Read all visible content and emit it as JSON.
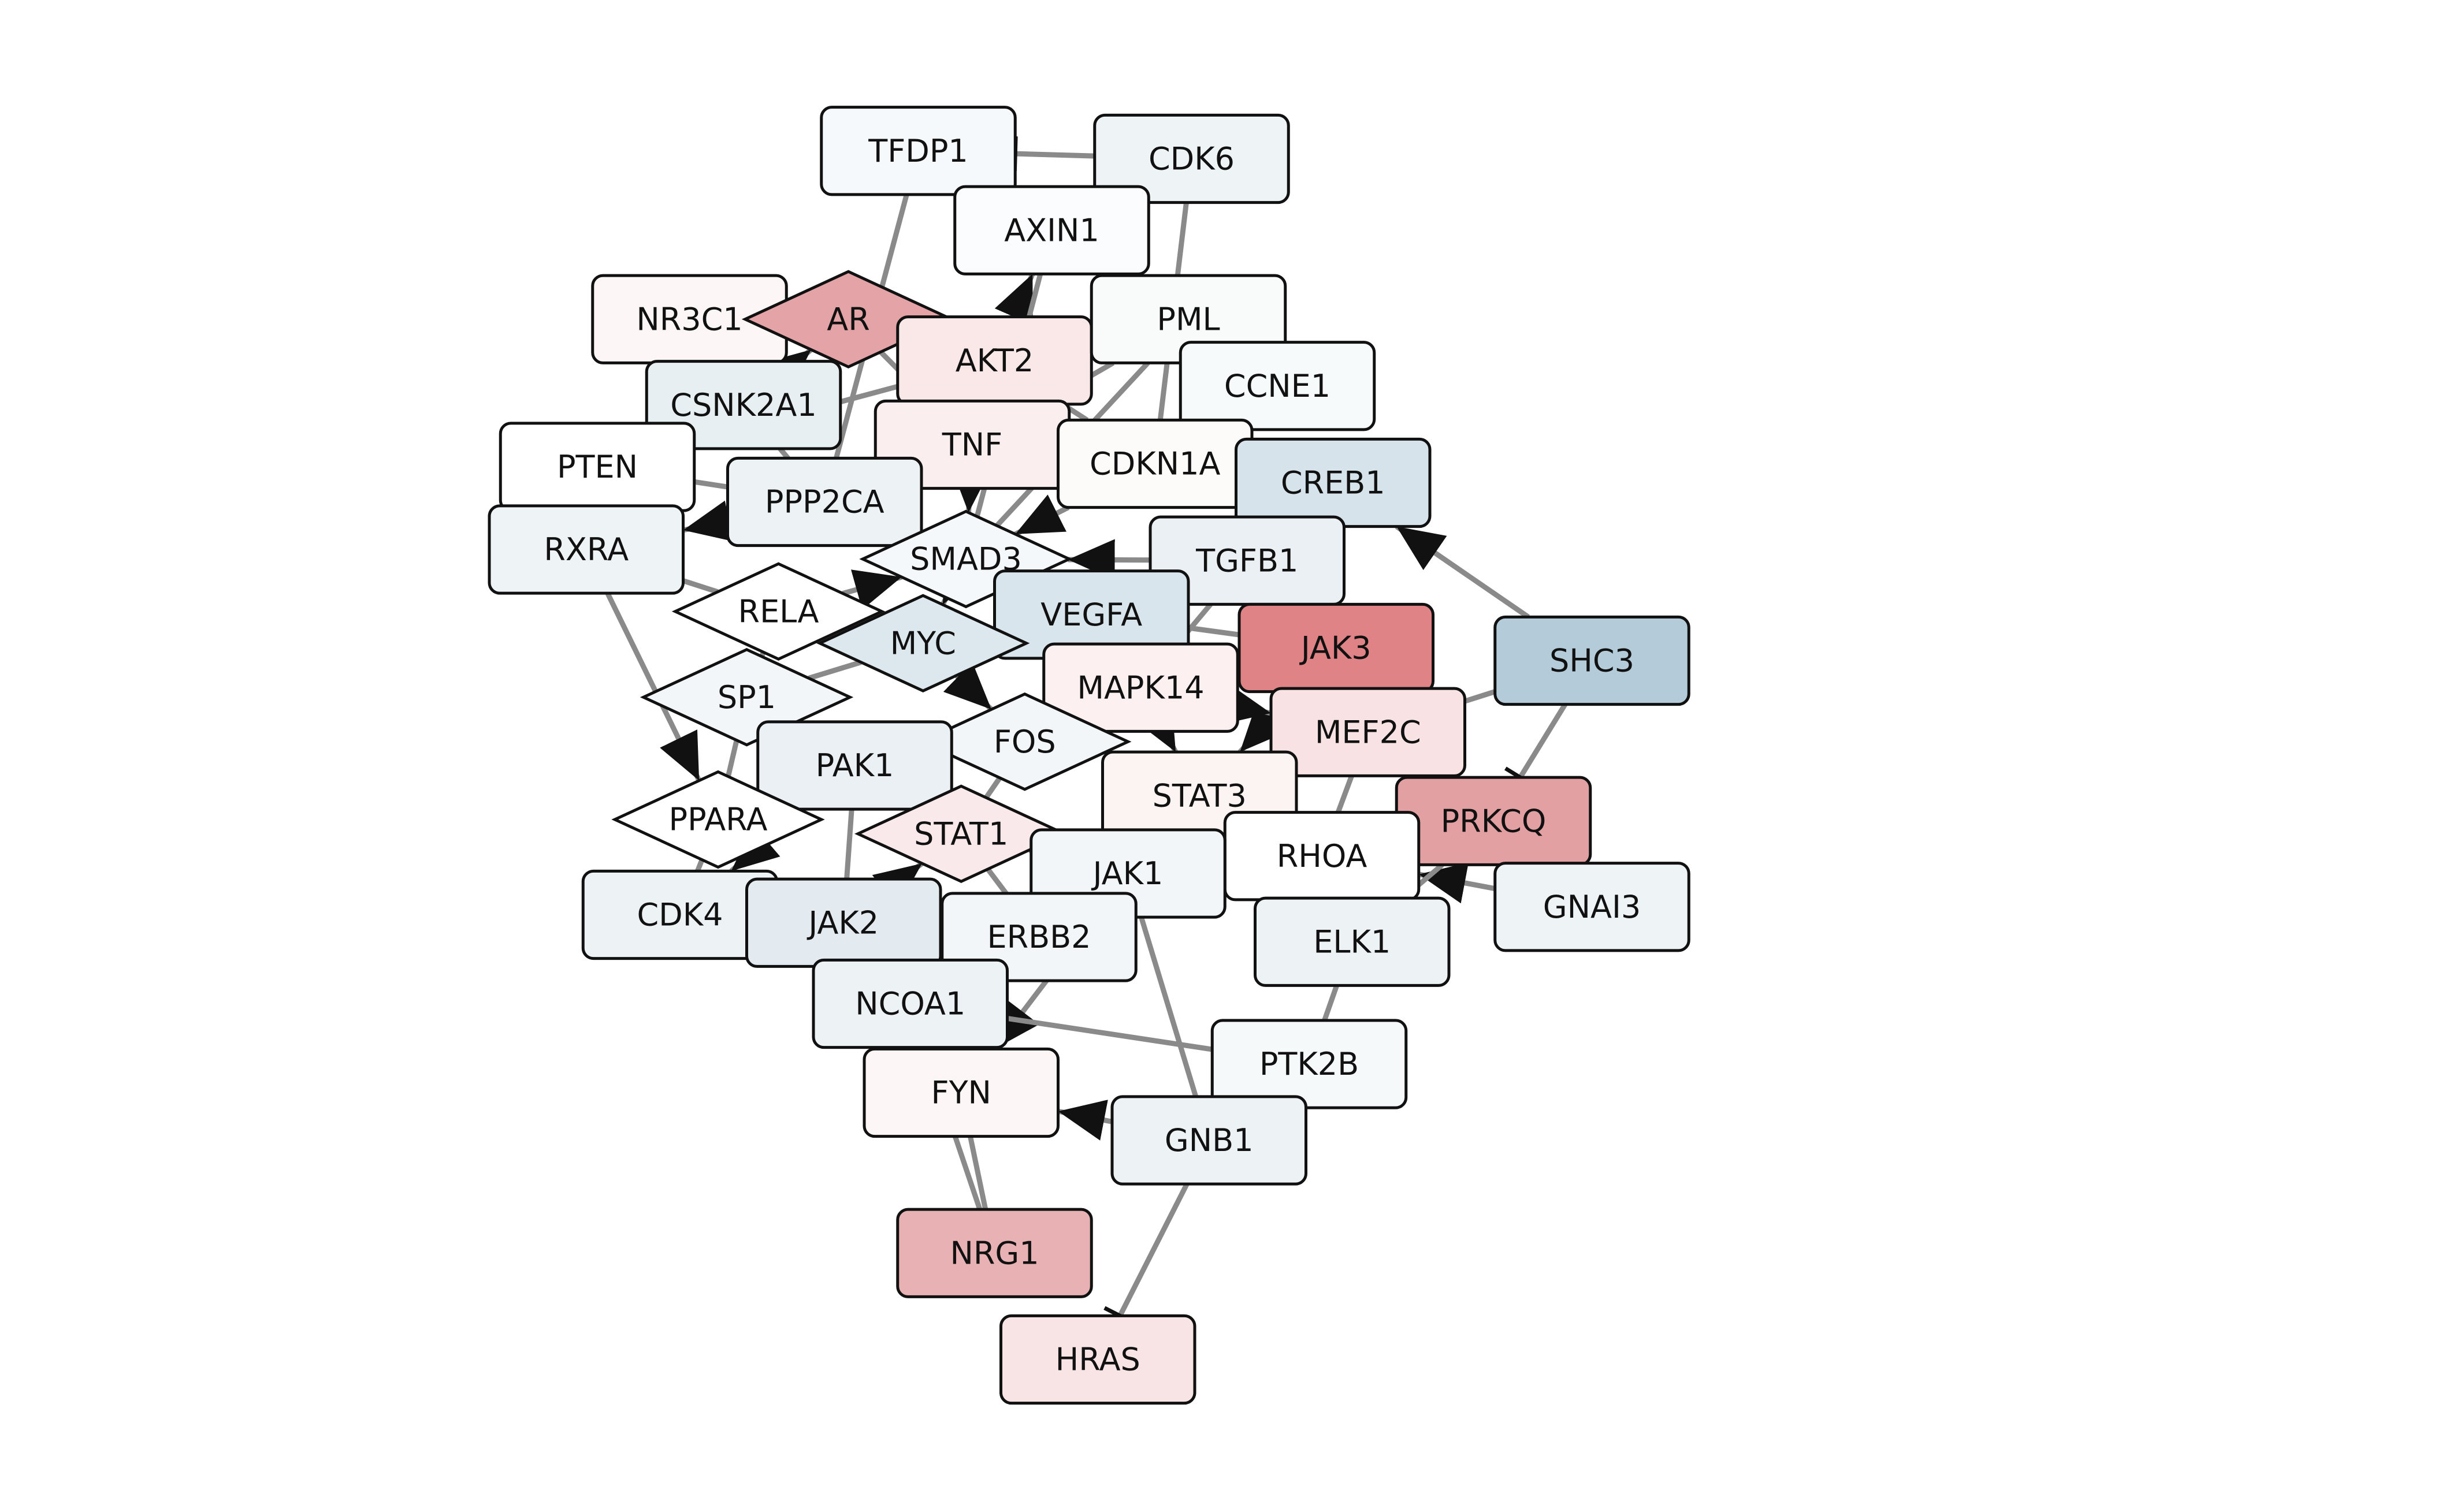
{
  "network": {
    "nodes": [
      {
        "id": "TFDP1",
        "shape": "rect",
        "fill": "#f6f9fb"
      },
      {
        "id": "CDK6",
        "shape": "rect",
        "fill": "#eef3f6"
      },
      {
        "id": "AXIN1",
        "shape": "rect",
        "fill": "#fbfcfd"
      },
      {
        "id": "NR3C1",
        "shape": "rect",
        "fill": "#fdf6f6"
      },
      {
        "id": "AR",
        "shape": "diamond",
        "fill": "#e4a3a6"
      },
      {
        "id": "AKT2",
        "shape": "rect",
        "fill": "#fae8e9"
      },
      {
        "id": "PML",
        "shape": "rect",
        "fill": "#f9fbfb"
      },
      {
        "id": "CSNK2A1",
        "shape": "rect",
        "fill": "#e8eff3"
      },
      {
        "id": "CCNE1",
        "shape": "rect",
        "fill": "#f7fafb"
      },
      {
        "id": "TNF",
        "shape": "rect",
        "fill": "#fbeeee"
      },
      {
        "id": "PTEN",
        "shape": "rect",
        "fill": "#ffffff"
      },
      {
        "id": "CDKN1A",
        "shape": "rect",
        "fill": "#fdfafa"
      },
      {
        "id": "PPP2CA",
        "shape": "rect",
        "fill": "#edf2f5"
      },
      {
        "id": "CREB1",
        "shape": "rect",
        "fill": "#d6e3ea"
      },
      {
        "id": "RXRA",
        "shape": "rect",
        "fill": "#eef3f6"
      },
      {
        "id": "SMAD3",
        "shape": "diamond",
        "fill": "#f5f8fa"
      },
      {
        "id": "TGFB1",
        "shape": "rect",
        "fill": "#eaf0f4"
      },
      {
        "id": "RELA",
        "shape": "diamond",
        "fill": "#ffffff"
      },
      {
        "id": "VEGFA",
        "shape": "rect",
        "fill": "#d8e5ec"
      },
      {
        "id": "MYC",
        "shape": "diamond",
        "fill": "#dde8ee"
      },
      {
        "id": "JAK3",
        "shape": "rect",
        "fill": "#df8387"
      },
      {
        "id": "SHC3",
        "shape": "rect",
        "fill": "#b4ccda"
      },
      {
        "id": "SP1",
        "shape": "diamond",
        "fill": "#f2f6f8"
      },
      {
        "id": "MAPK14",
        "shape": "rect",
        "fill": "#fcf0f1"
      },
      {
        "id": "FOS",
        "shape": "diamond",
        "fill": "#f2f6f8"
      },
      {
        "id": "MEF2C",
        "shape": "rect",
        "fill": "#f8e2e3"
      },
      {
        "id": "PAK1",
        "shape": "rect",
        "fill": "#eaf0f4"
      },
      {
        "id": "STAT3",
        "shape": "rect",
        "fill": "#fcf3f3"
      },
      {
        "id": "PRKCQ",
        "shape": "rect",
        "fill": "#e3a0a3"
      },
      {
        "id": "PPARA",
        "shape": "diamond",
        "fill": "#ffffff"
      },
      {
        "id": "STAT1",
        "shape": "diamond",
        "fill": "#fae9ea"
      },
      {
        "id": "RHOA",
        "shape": "rect",
        "fill": "#ffffff"
      },
      {
        "id": "JAK1",
        "shape": "rect",
        "fill": "#f2f6f8"
      },
      {
        "id": "GNAI3",
        "shape": "rect",
        "fill": "#eef3f6"
      },
      {
        "id": "CDK4",
        "shape": "rect",
        "fill": "#edf2f5"
      },
      {
        "id": "JAK2",
        "shape": "rect",
        "fill": "#e3ebf0"
      },
      {
        "id": "ERBB2",
        "shape": "rect",
        "fill": "#f2f6f8"
      },
      {
        "id": "ELK1",
        "shape": "rect",
        "fill": "#edf2f5"
      },
      {
        "id": "NCOA1",
        "shape": "rect",
        "fill": "#edf2f5"
      },
      {
        "id": "PTK2B",
        "shape": "rect",
        "fill": "#f6f9fa"
      },
      {
        "id": "FYN",
        "shape": "rect",
        "fill": "#fdf6f6"
      },
      {
        "id": "GNB1",
        "shape": "rect",
        "fill": "#edf2f5"
      },
      {
        "id": "NRG1",
        "shape": "rect",
        "fill": "#e8b2b4"
      },
      {
        "id": "HRAS",
        "shape": "rect",
        "fill": "#f8e4e5"
      }
    ],
    "edges": [
      {
        "source": "CDK6",
        "target": "TFDP1",
        "type": "inhibit"
      },
      {
        "source": "AXIN1",
        "target": "TFDP1",
        "type": "activate"
      },
      {
        "source": "AKT2",
        "target": "AXIN1",
        "type": "activate"
      },
      {
        "source": "PML",
        "target": "AXIN1",
        "type": "plain"
      },
      {
        "source": "CDK6",
        "target": "AXIN1",
        "type": "activate"
      },
      {
        "source": "CDK6",
        "target": "CDKN1A",
        "type": "plain"
      },
      {
        "source": "NR3C1",
        "target": "AR",
        "type": "plain"
      },
      {
        "source": "AR",
        "target": "AKT2",
        "type": "activate"
      },
      {
        "source": "CSNK2A1",
        "target": "AR",
        "type": "activate"
      },
      {
        "source": "AKT2",
        "target": "TNF",
        "type": "plain"
      },
      {
        "source": "AKT2",
        "target": "CDKN1A",
        "type": "plain"
      },
      {
        "source": "PML",
        "target": "TNF",
        "type": "plain"
      },
      {
        "source": "CCNE1",
        "target": "CDKN1A",
        "type": "plain"
      },
      {
        "source": "TNF",
        "target": "PPP2CA",
        "type": "plain"
      },
      {
        "source": "TNF",
        "target": "SMAD3",
        "type": "activate"
      },
      {
        "source": "PTEN",
        "target": "PPP2CA",
        "type": "plain"
      },
      {
        "source": "PTEN",
        "target": "AKT2",
        "type": "plain"
      },
      {
        "source": "RXRA",
        "target": "PPARA",
        "type": "activate"
      },
      {
        "source": "RXRA",
        "target": "RELA",
        "type": "plain"
      },
      {
        "source": "PPP2CA",
        "target": "RXRA",
        "type": "activate"
      },
      {
        "source": "SMAD3",
        "target": "MYC",
        "type": "activate"
      },
      {
        "source": "TGFB1",
        "target": "SMAD3",
        "type": "activate"
      },
      {
        "source": "CDKN1A",
        "target": "SMAD3",
        "type": "activate"
      },
      {
        "source": "CREB1",
        "target": "CDKN1A",
        "type": "activate"
      },
      {
        "source": "SHC3",
        "target": "CREB1",
        "type": "activate"
      },
      {
        "source": "SHC3",
        "target": "MEF2C",
        "type": "plain"
      },
      {
        "source": "SHC3",
        "target": "PRKCQ",
        "type": "inhibit"
      },
      {
        "source": "JAK3",
        "target": "MAPK14",
        "type": "plain"
      },
      {
        "source": "JAK3",
        "target": "STAT3",
        "type": "activate"
      },
      {
        "source": "VEGFA",
        "target": "MYC",
        "type": "plain"
      },
      {
        "source": "RELA",
        "target": "MYC",
        "type": "plain"
      },
      {
        "source": "RELA",
        "target": "SP1",
        "type": "plain"
      },
      {
        "source": "MYC",
        "target": "SP1",
        "type": "plain"
      },
      {
        "source": "SP1",
        "target": "PAK1",
        "type": "plain"
      },
      {
        "source": "SP1",
        "target": "PPARA",
        "type": "plain"
      },
      {
        "source": "MAPK14",
        "target": "FOS",
        "type": "activate"
      },
      {
        "source": "MAPK14",
        "target": "MEF2C",
        "type": "activate"
      },
      {
        "source": "MAPK14",
        "target": "STAT3",
        "type": "activate"
      },
      {
        "source": "FOS",
        "target": "STAT1",
        "type": "plain"
      },
      {
        "source": "PAK1",
        "target": "STAT1",
        "type": "plain"
      },
      {
        "source": "PAK1",
        "target": "JAK2",
        "type": "plain"
      },
      {
        "source": "STAT3",
        "target": "JAK1",
        "type": "plain"
      },
      {
        "source": "STAT3",
        "target": "RHOA",
        "type": "plain"
      },
      {
        "source": "PRKCQ",
        "target": "RHOA",
        "type": "plain"
      },
      {
        "source": "GNAI3",
        "target": "RHOA",
        "type": "activate"
      },
      {
        "source": "PRKCQ",
        "target": "ELK1",
        "type": "plain"
      },
      {
        "source": "PPARA",
        "target": "CDK4",
        "type": "plain"
      },
      {
        "source": "JAK2",
        "target": "STAT1",
        "type": "activate"
      },
      {
        "source": "JAK1",
        "target": "ERBB2",
        "type": "plain"
      },
      {
        "source": "JAK1",
        "target": "FYN",
        "type": "activate"
      },
      {
        "source": "JAK1",
        "target": "GNB1",
        "type": "plain"
      },
      {
        "source": "STAT1",
        "target": "JAK1",
        "type": "plain"
      },
      {
        "source": "ELK1",
        "target": "PTK2B",
        "type": "plain"
      },
      {
        "source": "PTK2B",
        "target": "NCOA1",
        "type": "plain"
      },
      {
        "source": "ERBB2",
        "target": "NCOA1",
        "type": "activate"
      },
      {
        "source": "GNB1",
        "target": "FYN",
        "type": "activate"
      },
      {
        "source": "FYN",
        "target": "NRG1",
        "type": "plain"
      },
      {
        "source": "NCOA1",
        "target": "NRG1",
        "type": "plain"
      },
      {
        "source": "GNB1",
        "target": "HRAS",
        "type": "inhibit"
      },
      {
        "source": "PAK1",
        "target": "CDK4",
        "type": "activate"
      },
      {
        "source": "SMAD3",
        "target": "VEGFA",
        "type": "plain"
      },
      {
        "source": "CSNK2A1",
        "target": "PPP2CA",
        "type": "plain"
      },
      {
        "source": "AR",
        "target": "TNF",
        "type": "plain"
      },
      {
        "source": "MYC",
        "target": "FOS",
        "type": "activate"
      },
      {
        "source": "TGFB1",
        "target": "MAPK14",
        "type": "plain"
      },
      {
        "source": "VEGFA",
        "target": "JAK3",
        "type": "plain"
      },
      {
        "source": "JAK2",
        "target": "NCOA1",
        "type": "plain"
      },
      {
        "source": "CDK4",
        "target": "JAK2",
        "type": "plain"
      },
      {
        "source": "RHOA",
        "target": "ELK1",
        "type": "plain"
      },
      {
        "source": "MEF2C",
        "target": "RHOA",
        "type": "plain"
      },
      {
        "source": "STAT1",
        "target": "ERBB2",
        "type": "plain"
      },
      {
        "source": "PPP2CA",
        "target": "SMAD3",
        "type": "activate"
      },
      {
        "source": "RELA",
        "target": "SMAD3",
        "type": "activate"
      },
      {
        "source": "AXIN1",
        "target": "SMAD3",
        "type": "plain"
      },
      {
        "source": "TFDP1",
        "target": "PPP2CA",
        "type": "plain"
      },
      {
        "source": "PML",
        "target": "SMAD3",
        "type": "plain"
      }
    ]
  }
}
